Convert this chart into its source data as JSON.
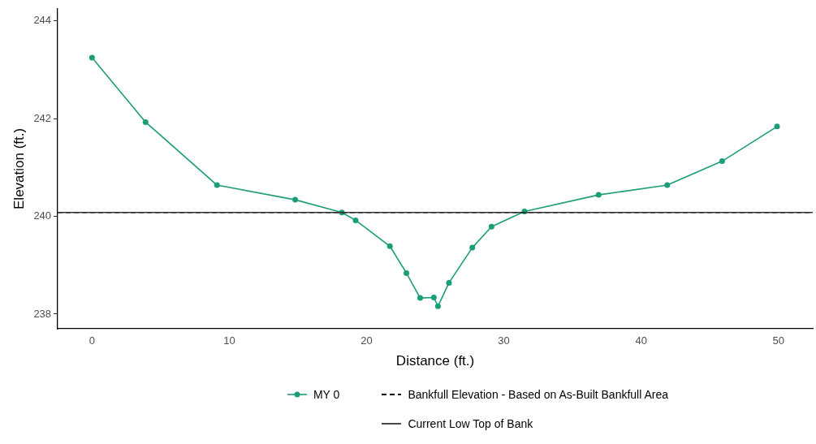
{
  "chart_data": {
    "type": "line",
    "xlabel": "Distance (ft.)",
    "ylabel": "Elevation (ft.)",
    "xlim": [
      -2.5,
      52.5
    ],
    "xticks": [
      0,
      10,
      20,
      30,
      40,
      50
    ],
    "ylim": [
      237.7,
      244.25
    ],
    "yticks": [
      238,
      240,
      242,
      244
    ],
    "grid": false,
    "legend": "bottom",
    "marker": "circle",
    "line_style": "solid",
    "series": [
      {
        "name": "MY 0",
        "color": "#1b9e77",
        "x": [
          0,
          3.9,
          9.1,
          14.8,
          18.2,
          19.2,
          21.7,
          22.9,
          23.9,
          24.9,
          25.2,
          26.0,
          27.7,
          29.1,
          31.5,
          36.9,
          41.9,
          45.9,
          49.9
        ],
        "values": [
          243.25,
          241.93,
          240.64,
          240.34,
          240.08,
          239.92,
          239.39,
          238.84,
          238.33,
          238.34,
          238.16,
          238.64,
          239.36,
          239.79,
          240.1,
          240.44,
          240.64,
          241.13,
          241.84
        ]
      }
    ],
    "ref_lines": [
      {
        "axis": "y",
        "value": 240.08,
        "label": "Bankfull Elevation - Based on As-Built Bankfull Area",
        "color": "#000000",
        "line_style": "dashed"
      },
      {
        "axis": "y",
        "value": 240.08,
        "label": "Current Low Top of Bank",
        "color": "#333333",
        "line_style": "solid"
      }
    ]
  }
}
